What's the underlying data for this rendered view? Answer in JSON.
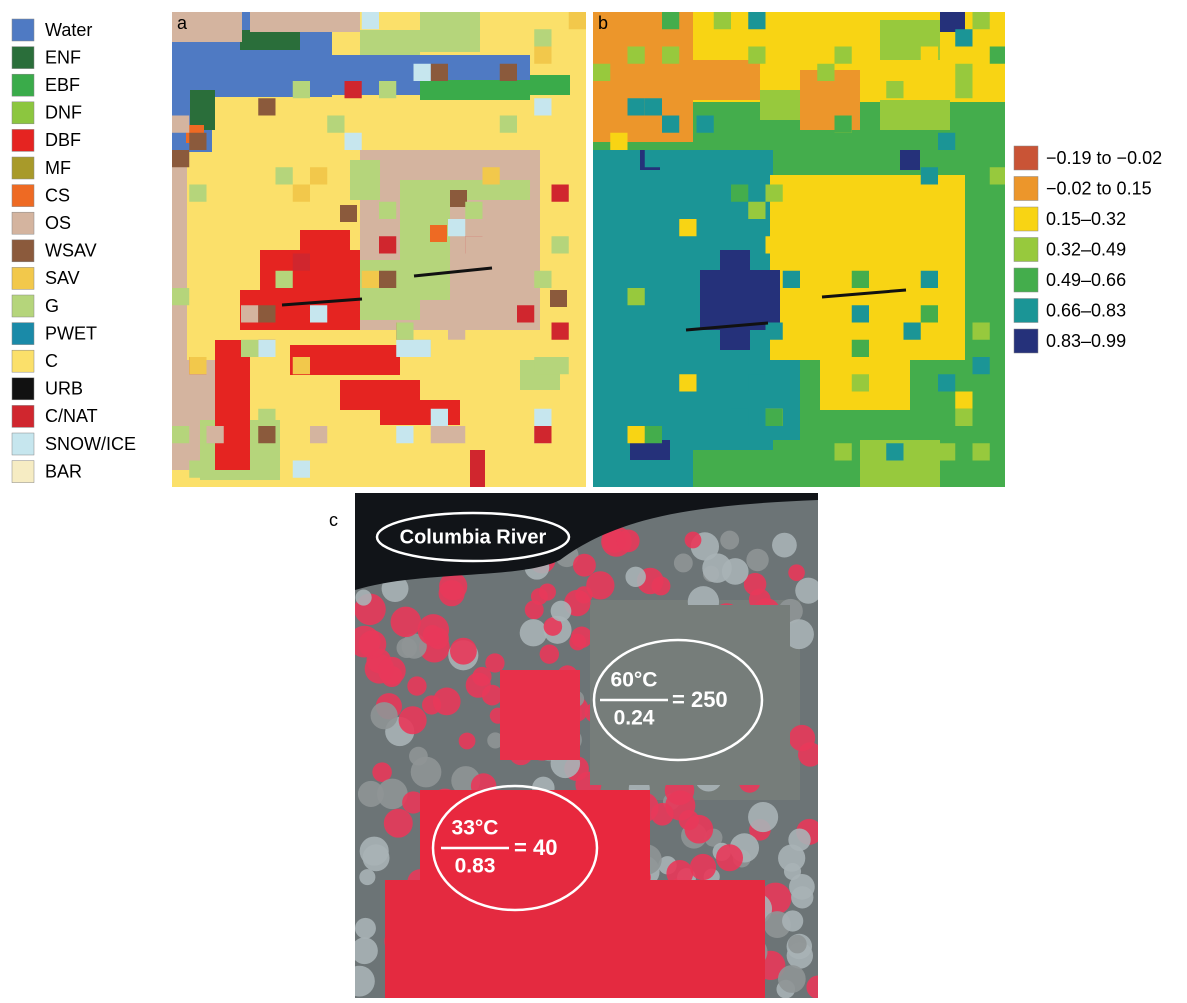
{
  "legend_a": {
    "items": [
      {
        "label": "Water",
        "color": "#4f7ac3"
      },
      {
        "label": "ENF",
        "color": "#2a6e3a"
      },
      {
        "label": "EBF",
        "color": "#3aab4a"
      },
      {
        "label": "DNF",
        "color": "#8cc63f"
      },
      {
        "label": "DBF",
        "color": "#e52421"
      },
      {
        "label": "MF",
        "color": "#a89a2a"
      },
      {
        "label": "CS",
        "color": "#ee6a23"
      },
      {
        "label": "OS",
        "color": "#d4b49f"
      },
      {
        "label": "WSAV",
        "color": "#8b5a3c"
      },
      {
        "label": "SAV",
        "color": "#f2c84b"
      },
      {
        "label": "G",
        "color": "#b5d57b"
      },
      {
        "label": "PWET",
        "color": "#1a8aa8"
      },
      {
        "label": "C",
        "color": "#fbe06a"
      },
      {
        "label": "URB",
        "color": "#111111"
      },
      {
        "label": "C/NAT",
        "color": "#d0262e"
      },
      {
        "label": "SNOW/ICE",
        "color": "#c6e6ee"
      },
      {
        "label": "BAR",
        "color": "#f6ecc3"
      }
    ]
  },
  "legend_b": {
    "items": [
      {
        "label": "−0.19 to −0.02",
        "color": "#c95436"
      },
      {
        "label": "−0.02 to 0.15",
        "color": "#ec962b"
      },
      {
        "label": "0.15–0.32",
        "color": "#f8d414"
      },
      {
        "label": "0.32–0.49",
        "color": "#97c93d"
      },
      {
        "label": "0.49–0.66",
        "color": "#44ad4c"
      },
      {
        "label": "0.66–0.83",
        "color": "#1b9596"
      },
      {
        "label": "0.83–0.99",
        "color": "#25317a"
      }
    ]
  },
  "panels": {
    "a": "a",
    "b": "b",
    "c": "c"
  },
  "annotations": {
    "river": "Columbia River",
    "upper": {
      "numerator": "60°C",
      "denominator": "0.24",
      "result": "= 250"
    },
    "lower": {
      "numerator": "33°C",
      "denominator": "0.83",
      "result": "= 40"
    }
  }
}
